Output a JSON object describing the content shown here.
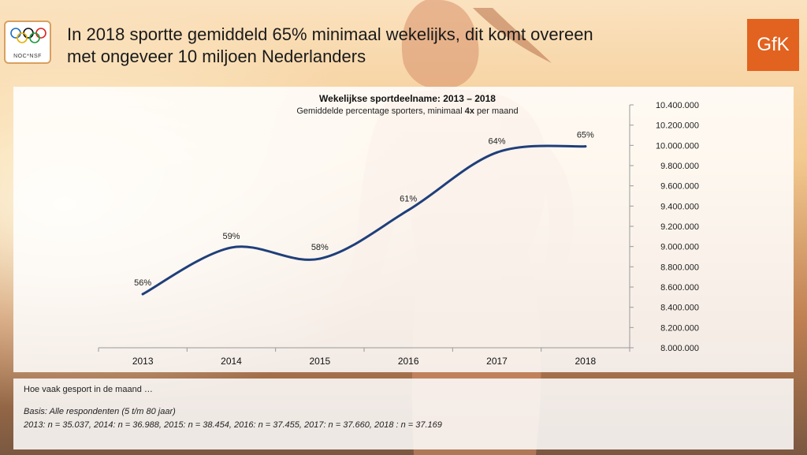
{
  "header": {
    "title_line1": "In 2018 sportte gemiddeld 65% minimaal wekelijks, dit komt overeen",
    "title_line2": "met ongeveer 10 miljoen Nederlanders",
    "left_logo_text": "NOC*NSF",
    "right_logo_text": "GfK",
    "brand_color": "#e2621f"
  },
  "chart_data": {
    "type": "line",
    "title": "Wekelijkse sportdeelname: 2013 – 2018",
    "subtitle_prefix": "Gemiddelde percentage sporters, minimaal ",
    "subtitle_bold": "4x",
    "subtitle_suffix": " per maand",
    "categories": [
      "2013",
      "2014",
      "2015",
      "2016",
      "2017",
      "2018"
    ],
    "series": [
      {
        "values": [
          8530000,
          8990000,
          8880000,
          9360000,
          9930000,
          9990000
        ],
        "data_labels": [
          "56%",
          "59%",
          "58%",
          "61%",
          "64%",
          "65%"
        ],
        "color": "#1f3f7a"
      }
    ],
    "ylim": [
      8000000,
      10400000
    ],
    "y_axis_position": "right",
    "yticks": [
      8000000,
      8200000,
      8400000,
      8600000,
      8800000,
      9000000,
      9200000,
      9400000,
      9600000,
      9800000,
      10000000,
      10200000,
      10400000
    ],
    "ytick_labels": [
      "8.000.000",
      "8.200.000",
      "8.400.000",
      "8.600.000",
      "8.800.000",
      "9.000.000",
      "9.200.000",
      "9.400.000",
      "9.600.000",
      "9.800.000",
      "10.000.000",
      "10.200.000",
      "10.400.000"
    ],
    "grid": false
  },
  "notes": {
    "question": "Hoe vaak gesport in de maand …",
    "basis": "Basis: Alle respondenten (5 t/m 80 jaar)",
    "sample_sizes": "2013: n = 35.037, 2014: n = 36.988, 2015: n = 38.454, 2016: n = 37.455, 2017: n = 37.660, 2018 : n = 37.169"
  }
}
